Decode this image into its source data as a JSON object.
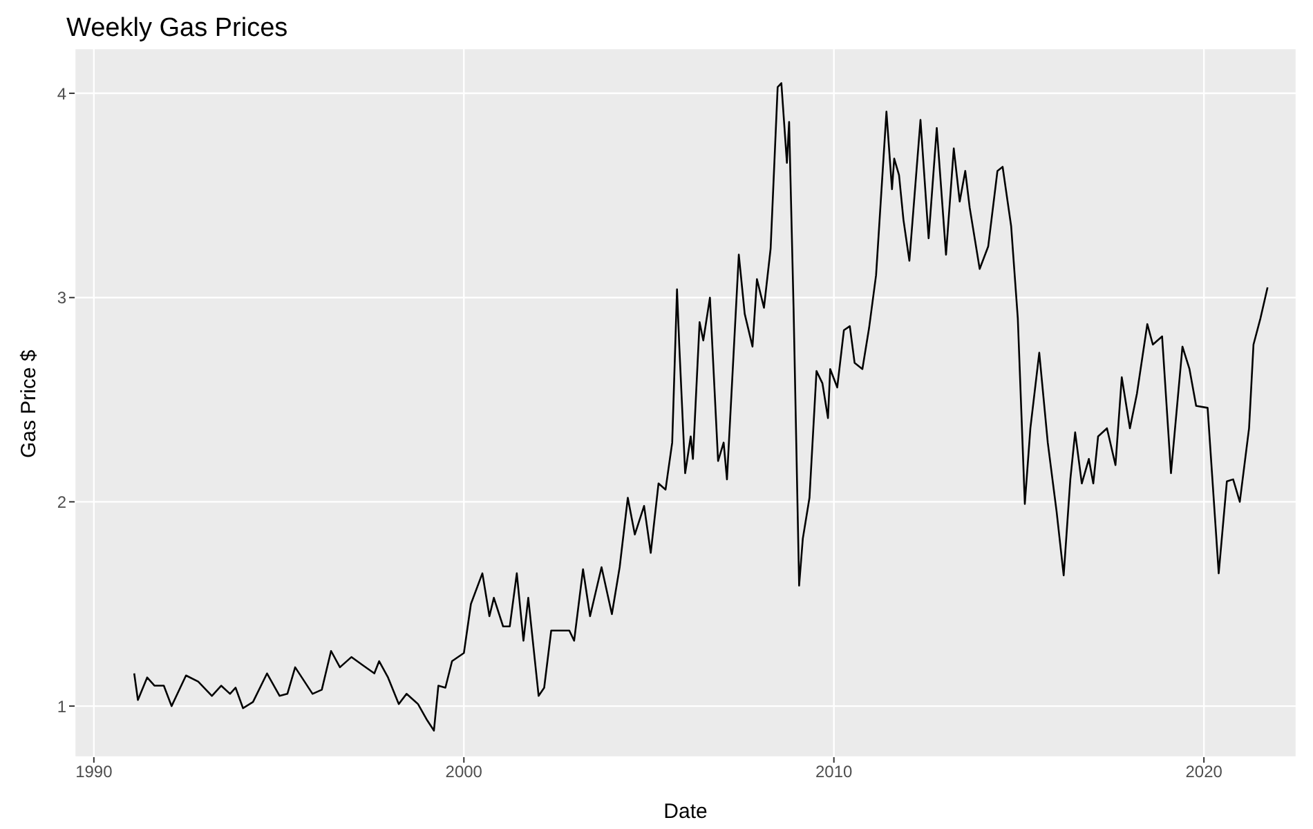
{
  "chart_data": {
    "type": "line",
    "title": "Weekly Gas Prices",
    "xlabel": "Date",
    "ylabel": "Gas Price $",
    "x": [
      1991.09,
      1991.19,
      1991.44,
      1991.64,
      1991.89,
      1992.1,
      1992.49,
      1992.82,
      1993.19,
      1993.44,
      1993.68,
      1993.83,
      1994.03,
      1994.3,
      1994.68,
      1995.02,
      1995.23,
      1995.44,
      1995.91,
      1996.16,
      1996.41,
      1996.65,
      1996.96,
      1997.27,
      1997.58,
      1997.71,
      1997.95,
      1998.24,
      1998.45,
      1998.76,
      1999.01,
      1999.19,
      1999.31,
      1999.5,
      1999.68,
      2000.0,
      2000.19,
      2000.5,
      2000.69,
      2000.81,
      2001.06,
      2001.24,
      2001.43,
      2001.61,
      2001.74,
      2002.02,
      2002.17,
      2002.36,
      2002.85,
      2002.98,
      2003.22,
      2003.41,
      2003.72,
      2004.0,
      2004.21,
      2004.43,
      2004.62,
      2004.87,
      2005.05,
      2005.26,
      2005.45,
      2005.63,
      2005.76,
      2005.82,
      2005.98,
      2006.13,
      2006.19,
      2006.37,
      2006.47,
      2006.65,
      2006.87,
      2007.02,
      2007.11,
      2007.43,
      2007.59,
      2007.8,
      2007.92,
      2008.11,
      2008.29,
      2008.48,
      2008.58,
      2008.73,
      2008.79,
      2008.91,
      2009.06,
      2009.16,
      2009.34,
      2009.53,
      2009.69,
      2009.84,
      2009.9,
      2010.09,
      2010.27,
      2010.43,
      2010.56,
      2010.77,
      2010.95,
      2011.14,
      2011.42,
      2011.57,
      2011.63,
      2011.76,
      2011.88,
      2012.04,
      2012.34,
      2012.56,
      2012.78,
      2013.03,
      2013.24,
      2013.4,
      2013.55,
      2013.67,
      2013.94,
      2014.17,
      2014.42,
      2014.56,
      2014.79,
      2014.97,
      2015.16,
      2015.31,
      2015.55,
      2015.78,
      2016.02,
      2016.21,
      2016.39,
      2016.52,
      2016.7,
      2016.89,
      2017.01,
      2017.14,
      2017.38,
      2017.61,
      2017.78,
      2018.0,
      2018.19,
      2018.47,
      2018.62,
      2018.87,
      2019.11,
      2019.42,
      2019.61,
      2019.79,
      2020.1,
      2020.4,
      2020.62,
      2020.79,
      2020.97,
      2021.22,
      2021.34,
      2021.53,
      2021.72
    ],
    "series": [
      {
        "color": "#000000",
        "values": [
          1.16,
          1.03,
          1.14,
          1.1,
          1.1,
          1.0,
          1.15,
          1.12,
          1.05,
          1.1,
          1.06,
          1.09,
          0.99,
          1.02,
          1.16,
          1.05,
          1.06,
          1.19,
          1.06,
          1.08,
          1.27,
          1.19,
          1.24,
          1.2,
          1.16,
          1.22,
          1.14,
          1.01,
          1.06,
          1.01,
          0.93,
          0.88,
          1.1,
          1.09,
          1.22,
          1.26,
          1.5,
          1.65,
          1.44,
          1.53,
          1.39,
          1.39,
          1.65,
          1.32,
          1.53,
          1.05,
          1.09,
          1.37,
          1.37,
          1.32,
          1.67,
          1.44,
          1.68,
          1.45,
          1.68,
          2.02,
          1.84,
          1.98,
          1.75,
          2.09,
          2.06,
          2.29,
          3.04,
          2.77,
          2.14,
          2.32,
          2.21,
          2.88,
          2.79,
          3.0,
          2.2,
          2.29,
          2.11,
          3.21,
          2.92,
          2.76,
          3.09,
          2.95,
          3.24,
          4.03,
          4.05,
          3.66,
          3.86,
          2.95,
          1.59,
          1.82,
          2.02,
          2.64,
          2.58,
          2.41,
          2.65,
          2.56,
          2.84,
          2.86,
          2.68,
          2.65,
          2.85,
          3.11,
          3.91,
          3.53,
          3.68,
          3.6,
          3.38,
          3.18,
          3.87,
          3.29,
          3.83,
          3.21,
          3.73,
          3.47,
          3.62,
          3.44,
          3.14,
          3.25,
          3.62,
          3.64,
          3.35,
          2.9,
          1.99,
          2.36,
          2.73,
          2.29,
          1.95,
          1.64,
          2.11,
          2.34,
          2.09,
          2.21,
          2.09,
          2.32,
          2.36,
          2.18,
          2.61,
          2.36,
          2.53,
          2.87,
          2.77,
          2.81,
          2.14,
          2.76,
          2.65,
          2.47,
          2.46,
          1.65,
          2.1,
          2.11,
          2.0,
          2.36,
          2.77,
          2.9,
          3.05
        ]
      }
    ],
    "xlim": [
      1989.48,
      2022.5
    ],
    "xticks": [
      1990,
      2000,
      2010,
      2020
    ],
    "ylim": [
      0.75,
      4.22
    ],
    "yticks": [
      1,
      2,
      3,
      4
    ],
    "grid": true,
    "legend": false,
    "marker": "none",
    "line_style": "solid"
  }
}
